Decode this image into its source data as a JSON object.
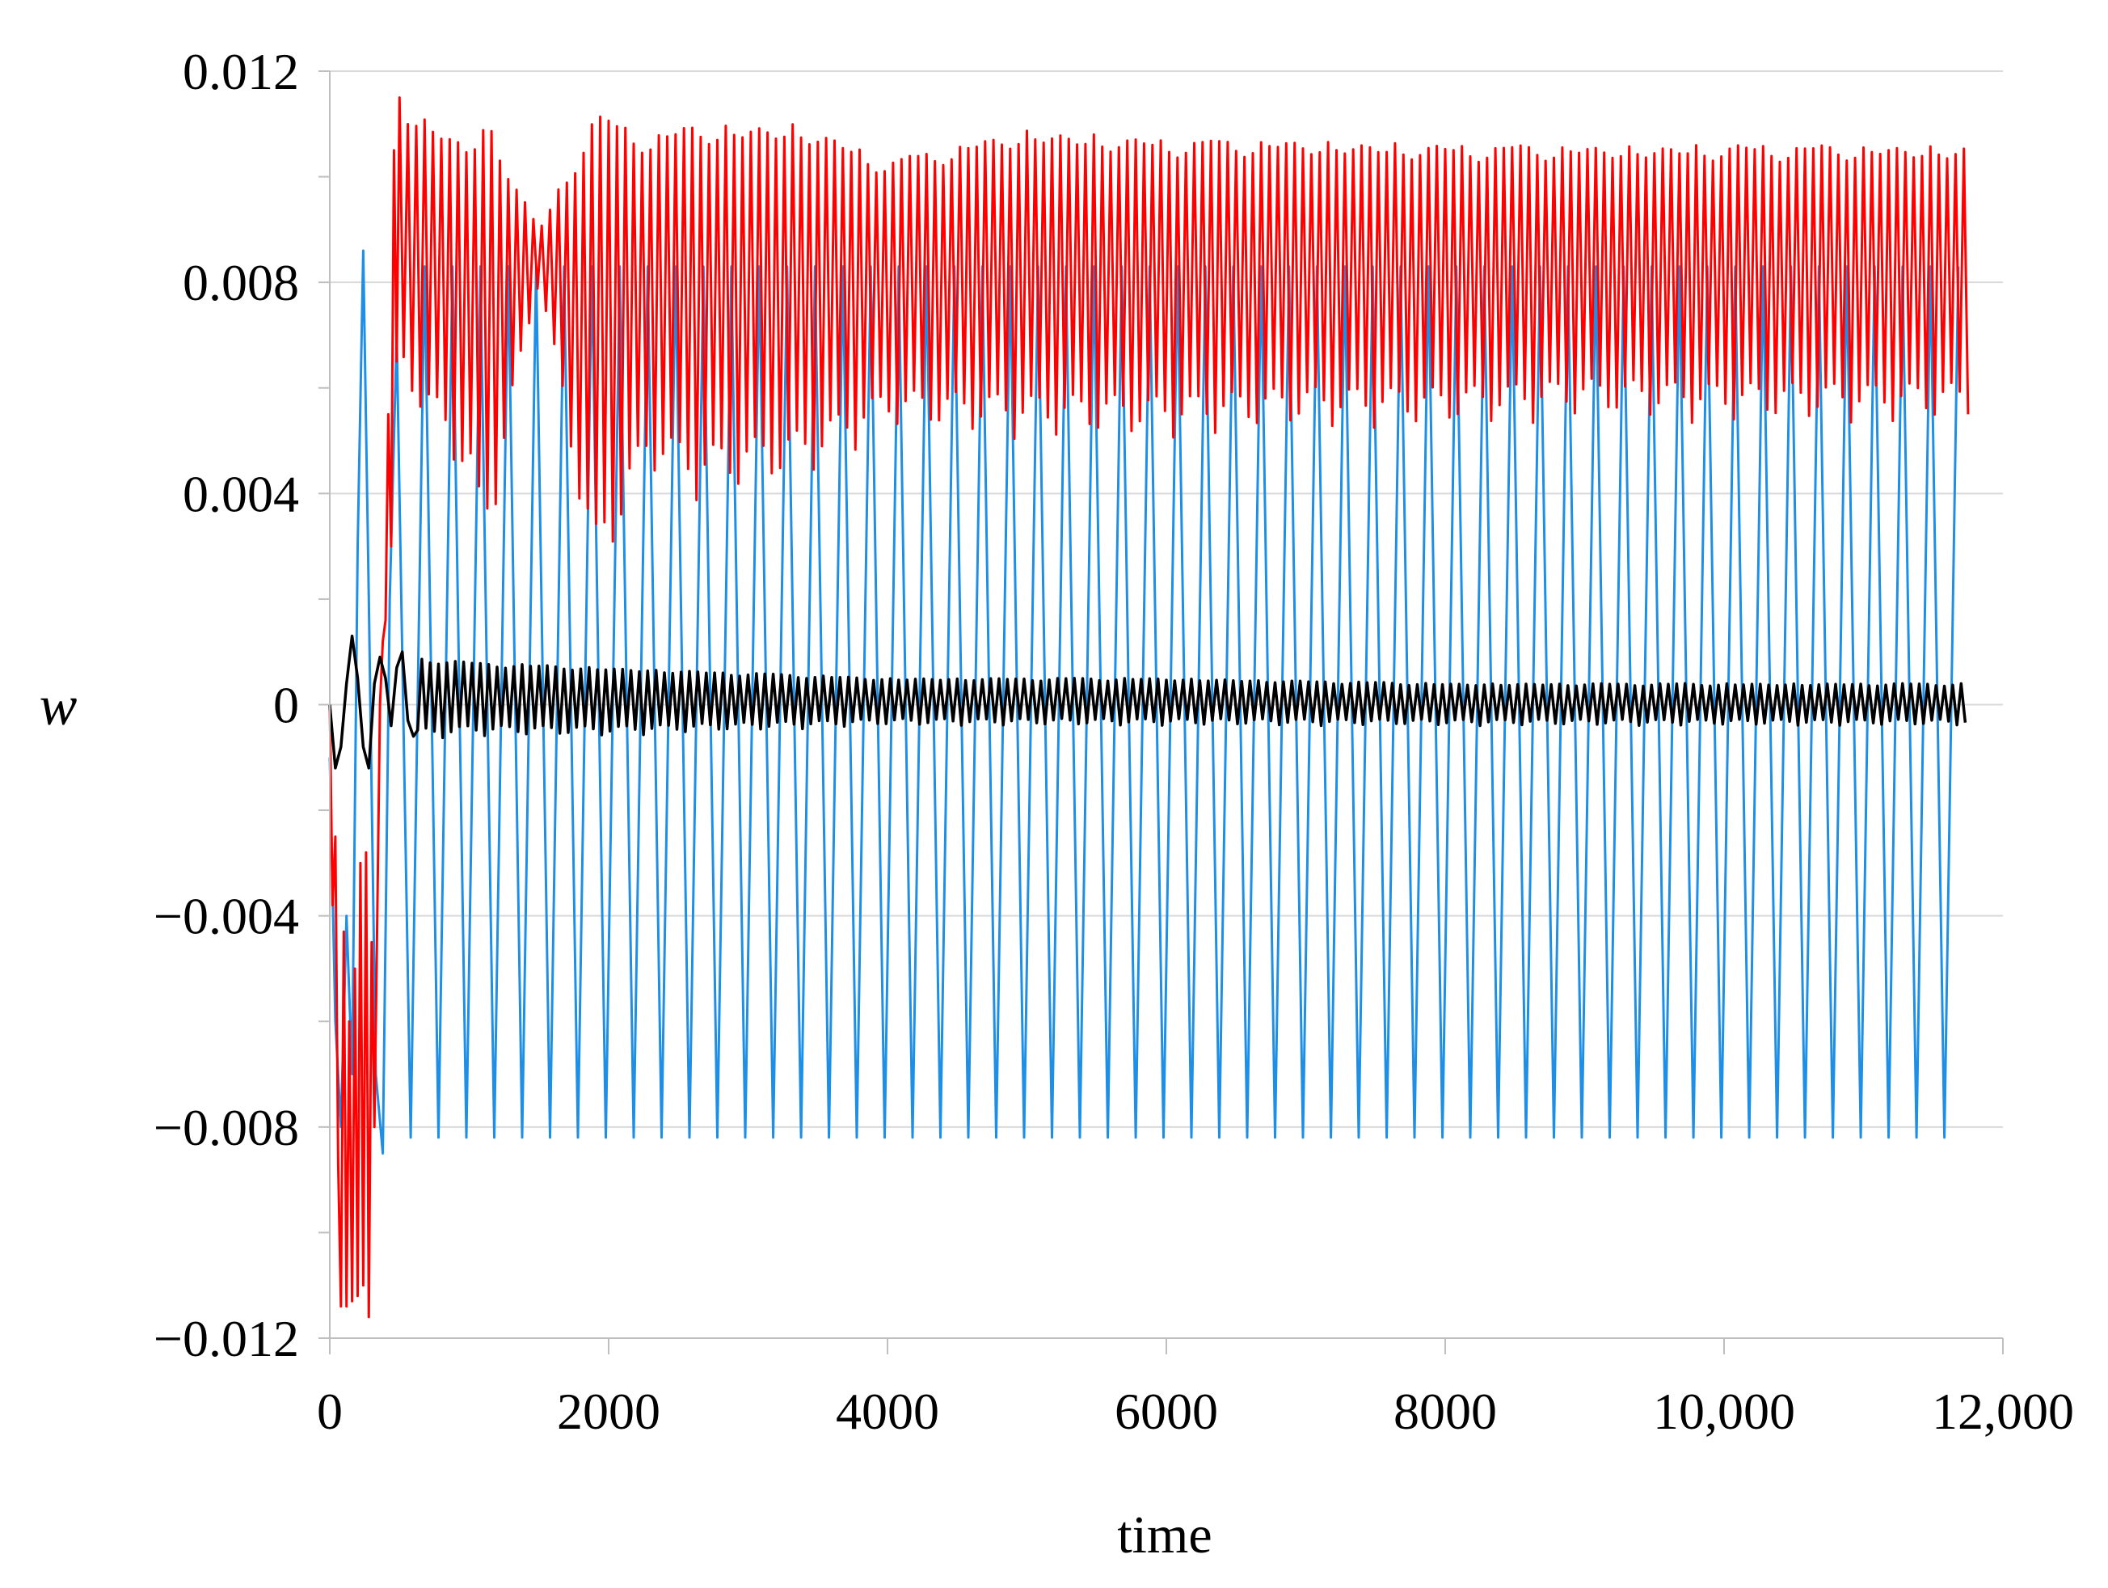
{
  "chart_data": {
    "type": "line",
    "title": "",
    "xlabel": "time",
    "ylabel": "w",
    "xlim": [
      0,
      12000
    ],
    "ylim": [
      -0.012,
      0.012
    ],
    "grid": {
      "horizontal": true,
      "vertical": false
    },
    "legend": "none",
    "x_ticks": [
      {
        "value": 0,
        "label": "0"
      },
      {
        "value": 2000,
        "label": "2000"
      },
      {
        "value": 4000,
        "label": "4000"
      },
      {
        "value": 6000,
        "label": "6000"
      },
      {
        "value": 8000,
        "label": "8000"
      },
      {
        "value": 10000,
        "label": "10,000"
      },
      {
        "value": 12000,
        "label": "12,000"
      }
    ],
    "y_ticks": [
      {
        "value": 0.012,
        "label": "0.012"
      },
      {
        "value": 0.008,
        "label": "0.008"
      },
      {
        "value": 0.004,
        "label": "0.004"
      },
      {
        "value": 0,
        "label": "0"
      },
      {
        "value": -0.004,
        "label": "−0.004"
      },
      {
        "value": -0.008,
        "label": "−0.008"
      },
      {
        "value": -0.012,
        "label": "−0.012"
      }
    ],
    "series": [
      {
        "color": "#1E8FE6",
        "x_end": 11750,
        "period": 200,
        "steady_range": [
          -0.0082,
          0.0083
        ],
        "transient": {
          "x": [
            0,
            40,
            80,
            120,
            160,
            200,
            240,
            280,
            330,
            380,
            430,
            480
          ],
          "y": [
            -0.001,
            -0.006,
            -0.008,
            -0.004,
            -0.007,
            0.003,
            0.0086,
            0.002,
            -0.007,
            -0.0085,
            0.002,
            0.007
          ]
        }
      },
      {
        "color": "#FF0000",
        "x_end": 11750,
        "period": 60,
        "transient": {
          "x": [
            0,
            20,
            40,
            60,
            80,
            100,
            120,
            140,
            160,
            180,
            200,
            220,
            240,
            260,
            280,
            300,
            320,
            340,
            360,
            380,
            400,
            420,
            440,
            460,
            480,
            500
          ],
          "y": [
            0.0,
            -0.0038,
            -0.0025,
            -0.0087,
            -0.0114,
            -0.0043,
            -0.0114,
            -0.006,
            -0.0113,
            -0.005,
            -0.0112,
            -0.003,
            -0.011,
            -0.0028,
            -0.0116,
            -0.0045,
            -0.008,
            -0.0042,
            0.0,
            0.0012,
            0.0016,
            0.0055,
            0.003,
            0.0105,
            0.0065,
            0.0115
          ]
        },
        "envelope": {
          "x": [
            500,
            1000,
            1100,
            1500,
            1900,
            2300,
            2600,
            3400,
            4000,
            5000,
            6000,
            7000,
            8000,
            9000,
            10000,
            11000,
            11750
          ],
          "upper": [
            0.0114,
            0.0106,
            0.0112,
            0.009,
            0.0112,
            0.0108,
            0.011,
            0.011,
            0.0103,
            0.0109,
            0.0107,
            0.0107,
            0.0106,
            0.0106,
            0.0106,
            0.0106,
            0.0106
          ],
          "lower": [
            0.006,
            0.004,
            0.0025,
            0.008,
            0.002,
            0.0044,
            0.0038,
            0.0042,
            0.0052,
            0.005,
            0.005,
            0.0052,
            0.0052,
            0.0054,
            0.0053,
            0.0053,
            0.0053
          ]
        }
      },
      {
        "color": "#000000",
        "x_end": 11750,
        "period": 60,
        "transient": {
          "x": [
            0,
            40,
            80,
            120,
            160,
            200,
            240,
            280,
            320,
            360,
            400,
            440,
            480,
            520,
            560,
            600
          ],
          "y": [
            0.0,
            -0.0012,
            -0.0008,
            0.0004,
            0.0013,
            0.0005,
            -0.0008,
            -0.0012,
            0.0004,
            0.0009,
            0.0005,
            -0.0004,
            0.0007,
            0.001,
            -0.0003,
            -0.0006
          ]
        },
        "envelope": {
          "x": [
            600,
            1000,
            2000,
            3000,
            4000,
            6000,
            8000,
            11750
          ],
          "upper": [
            0.0009,
            0.0008,
            0.0007,
            0.0006,
            0.0005,
            0.0005,
            0.0004,
            0.0004
          ],
          "lower": [
            -0.0007,
            -0.0006,
            -0.0006,
            -0.0005,
            -0.0004,
            -0.0004,
            -0.0004,
            -0.0004
          ]
        }
      }
    ]
  }
}
